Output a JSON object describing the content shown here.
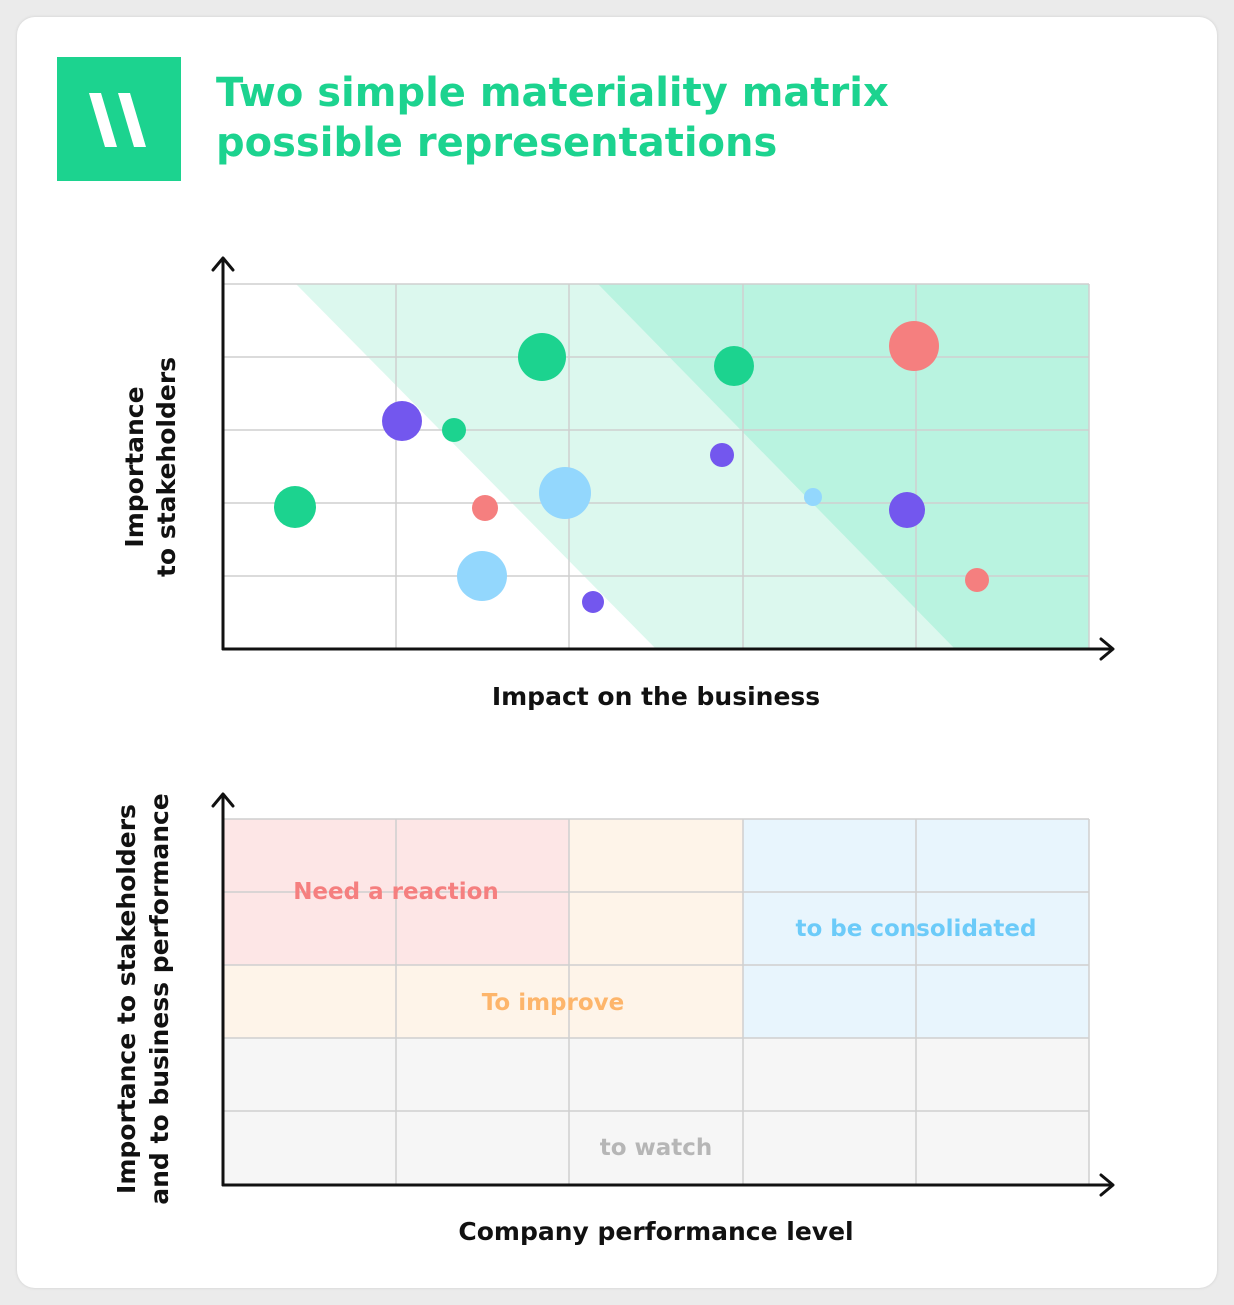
{
  "title": {
    "line1": "Two simple materiality matrix",
    "line2": "possible representations"
  },
  "logo": {
    "icon": "double-slash-logo-icon",
    "color": "#1cd38f"
  },
  "matrix1": {
    "x_label": "Impact on the business",
    "y_label_line1": "Importance",
    "y_label_line2": "to stakeholders",
    "bubbles": [
      {
        "color": "green"
      },
      {
        "color": "green"
      },
      {
        "color": "green"
      },
      {
        "color": "green"
      },
      {
        "color": "coral"
      },
      {
        "color": "coral"
      },
      {
        "color": "coral"
      },
      {
        "color": "purple"
      },
      {
        "color": "purple"
      },
      {
        "color": "purple"
      },
      {
        "color": "purple"
      },
      {
        "color": "light-blue"
      },
      {
        "color": "light-blue"
      },
      {
        "color": "light-blue"
      }
    ]
  },
  "matrix2": {
    "x_label": "Company performance level",
    "y_label_line1": "Importance to stakeholders",
    "y_label_line2": "and to business performance",
    "zones": {
      "need_reaction": "Need a reaction",
      "to_improve": "To improve",
      "to_be_consolidated": "to be consolidated",
      "to_watch": "to watch"
    }
  },
  "colors": {
    "green": "#1cd38f",
    "coral": "#f57f7f",
    "purple": "#7357ee",
    "light_blue": "#93d7fd",
    "zone_light_green": "#dcf8ee",
    "zone_mid_green": "#b9f3e0",
    "zone_red": "#fde6e6",
    "zone_orange": "#fef4e9",
    "zone_blue": "#e8f5fd",
    "zone_grey": "#f6f6f6",
    "text_red": "#f57f7f",
    "text_orange": "#fdb56b",
    "text_blue": "#6ccbf9",
    "text_grey": "#b6b6b6"
  }
}
